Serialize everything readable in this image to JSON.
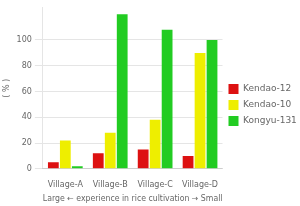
{
  "chart_data": {
    "type": "bar",
    "xlabel": "Large ← experience in rice cultivation → Small",
    "ylabel": "( % )",
    "categories": [
      "Village-A",
      "Village-B",
      "Village-C",
      "Village-D"
    ],
    "series": [
      {
        "name": "Kendao-12",
        "color": "#dd1111",
        "values": [
          5,
          12,
          15,
          10
        ]
      },
      {
        "name": "Kendao-10",
        "color": "#eeee00",
        "values": [
          22,
          28,
          38,
          90
        ]
      },
      {
        "name": "Kongyu-131",
        "color": "#22cc22",
        "values": [
          2,
          120,
          108,
          100
        ]
      }
    ],
    "ylim": [
      0,
      125
    ],
    "yticks": [
      0,
      20,
      40,
      60,
      80,
      100
    ],
    "grid": true,
    "legend": "right"
  }
}
